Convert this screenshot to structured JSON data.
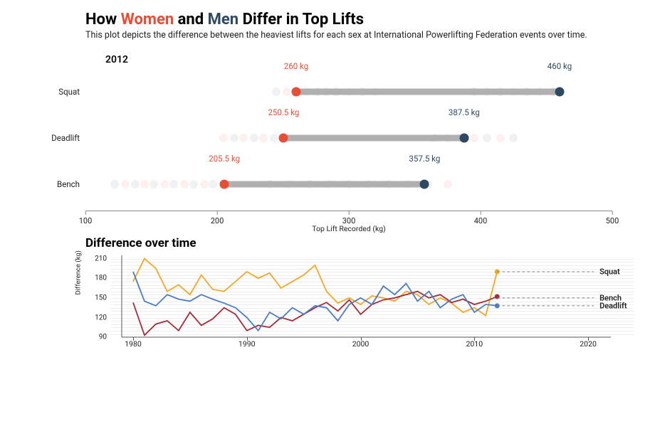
{
  "title_prefix": "How ",
  "title_women": "Women",
  "title_and": " and ",
  "title_men": "Men",
  "title_suffix": " Differ in Top Lifts",
  "subtitle": "This plot depicts the difference between the heaviest lifts for each sex at International Powerlifting Federation events over time.",
  "year": "2012",
  "colors": {
    "women": "#e64e36",
    "men": "#2e4a63",
    "bar": "#b0b0b0",
    "squat_line": "#f5a623",
    "bench_line": "#a52a3a",
    "deadlift_line": "#4a7bc4",
    "axis": "#888888",
    "grid": "#eeeeee"
  },
  "dumbbell": {
    "x_domain": [
      100,
      500
    ],
    "rows": [
      {
        "label": "Squat",
        "women": 260,
        "men": 460,
        "women_label": "260 kg",
        "men_label": "460 kg"
      },
      {
        "label": "Deadlift",
        "women": 250.5,
        "men": 387.5,
        "women_label": "250.5 kg",
        "men_label": "387.5 kg"
      },
      {
        "label": "Bench",
        "women": 205.5,
        "men": 357.5,
        "women_label": "205.5 kg",
        "men_label": "357.5 kg"
      }
    ],
    "ghosts": {
      "rows": [
        [
          {
            "x": 245,
            "c": "m"
          },
          {
            "x": 253,
            "c": "w"
          },
          {
            "x": 260,
            "c": "m"
          },
          {
            "x": 268,
            "c": "w"
          },
          {
            "x": 276,
            "c": "m"
          },
          {
            "x": 283,
            "c": "w"
          },
          {
            "x": 290,
            "c": "m"
          },
          {
            "x": 300,
            "c": "w"
          },
          {
            "x": 310,
            "c": "m"
          },
          {
            "x": 320,
            "c": "w"
          },
          {
            "x": 395,
            "c": "m"
          },
          {
            "x": 405,
            "c": "w"
          },
          {
            "x": 415,
            "c": "m"
          },
          {
            "x": 425,
            "c": "w"
          },
          {
            "x": 435,
            "c": "m"
          },
          {
            "x": 445,
            "c": "w"
          },
          {
            "x": 455,
            "c": "m"
          }
        ],
        [
          {
            "x": 205,
            "c": "w"
          },
          {
            "x": 213,
            "c": "m"
          },
          {
            "x": 220,
            "c": "w"
          },
          {
            "x": 228,
            "c": "m"
          },
          {
            "x": 235,
            "c": "w"
          },
          {
            "x": 243,
            "c": "m"
          },
          {
            "x": 365,
            "c": "m"
          },
          {
            "x": 375,
            "c": "w"
          },
          {
            "x": 385,
            "c": "m"
          },
          {
            "x": 395,
            "c": "w"
          },
          {
            "x": 405,
            "c": "m"
          },
          {
            "x": 415,
            "c": "w"
          },
          {
            "x": 425,
            "c": "m"
          }
        ],
        [
          {
            "x": 122,
            "c": "m"
          },
          {
            "x": 130,
            "c": "w"
          },
          {
            "x": 138,
            "c": "m"
          },
          {
            "x": 145,
            "c": "w"
          },
          {
            "x": 152,
            "c": "m"
          },
          {
            "x": 160,
            "c": "w"
          },
          {
            "x": 167,
            "c": "m"
          },
          {
            "x": 175,
            "c": "w"
          },
          {
            "x": 182,
            "c": "m"
          },
          {
            "x": 190,
            "c": "w"
          },
          {
            "x": 197,
            "c": "m"
          },
          {
            "x": 240,
            "c": "m"
          },
          {
            "x": 255,
            "c": "w"
          },
          {
            "x": 270,
            "c": "m"
          },
          {
            "x": 285,
            "c": "w"
          },
          {
            "x": 300,
            "c": "m"
          },
          {
            "x": 315,
            "c": "w"
          },
          {
            "x": 330,
            "c": "m"
          },
          {
            "x": 345,
            "c": "w"
          },
          {
            "x": 360,
            "c": "m"
          },
          {
            "x": 375,
            "c": "w"
          }
        ]
      ]
    },
    "ticks": [
      100,
      200,
      300,
      400,
      500
    ],
    "axis_label": "Top Lift Recorded (kg)"
  },
  "line": {
    "title": "Difference over time",
    "x_domain": [
      1978,
      2024
    ],
    "y_domain": [
      90,
      215
    ],
    "y_ticks": [
      90,
      120,
      150,
      180,
      210
    ],
    "x_ticks": [
      1980,
      1990,
      2000,
      2010,
      2020
    ],
    "y_label": "Difference (kg)",
    "series": [
      {
        "name": "Squat",
        "color": "#f5a623",
        "points": [
          [
            1980,
            175
          ],
          [
            1981,
            210
          ],
          [
            1982,
            195
          ],
          [
            1983,
            160
          ],
          [
            1984,
            170
          ],
          [
            1985,
            155
          ],
          [
            1986,
            185
          ],
          [
            1987,
            163
          ],
          [
            1988,
            160
          ],
          [
            1989,
            175
          ],
          [
            1990,
            190
          ],
          [
            1991,
            180
          ],
          [
            1992,
            188
          ],
          [
            1993,
            165
          ],
          [
            1994,
            175
          ],
          [
            1995,
            185
          ],
          [
            1996,
            200
          ],
          [
            1997,
            160
          ],
          [
            1998,
            142
          ],
          [
            1999,
            150
          ],
          [
            2000,
            140
          ],
          [
            2001,
            153
          ],
          [
            2002,
            150
          ],
          [
            2003,
            145
          ],
          [
            2004,
            160
          ],
          [
            2005,
            155
          ],
          [
            2006,
            140
          ],
          [
            2007,
            150
          ],
          [
            2008,
            142
          ],
          [
            2009,
            128
          ],
          [
            2010,
            135
          ],
          [
            2011,
            123
          ],
          [
            2012,
            190
          ]
        ],
        "end_label": "Squat",
        "end_y": 190
      },
      {
        "name": "Bench",
        "color": "#a52a3a",
        "points": [
          [
            1980,
            143
          ],
          [
            1981,
            93
          ],
          [
            1982,
            110
          ],
          [
            1983,
            115
          ],
          [
            1984,
            100
          ],
          [
            1985,
            128
          ],
          [
            1986,
            108
          ],
          [
            1987,
            118
          ],
          [
            1988,
            135
          ],
          [
            1989,
            125
          ],
          [
            1990,
            100
          ],
          [
            1991,
            108
          ],
          [
            1992,
            105
          ],
          [
            1993,
            120
          ],
          [
            1994,
            115
          ],
          [
            1995,
            125
          ],
          [
            1996,
            135
          ],
          [
            1997,
            143
          ],
          [
            1998,
            130
          ],
          [
            1999,
            147
          ],
          [
            2000,
            125
          ],
          [
            2001,
            140
          ],
          [
            2002,
            147
          ],
          [
            2003,
            150
          ],
          [
            2004,
            155
          ],
          [
            2005,
            160
          ],
          [
            2006,
            150
          ],
          [
            2007,
            155
          ],
          [
            2008,
            143
          ],
          [
            2009,
            148
          ],
          [
            2010,
            140
          ],
          [
            2011,
            145
          ],
          [
            2012,
            152
          ]
        ],
        "end_label": "Bench",
        "end_y": 150
      },
      {
        "name": "Deadlift",
        "color": "#4a7bc4",
        "points": [
          [
            1980,
            190
          ],
          [
            1981,
            145
          ],
          [
            1982,
            138
          ],
          [
            1983,
            155
          ],
          [
            1984,
            148
          ],
          [
            1985,
            145
          ],
          [
            1986,
            155
          ],
          [
            1987,
            148
          ],
          [
            1988,
            142
          ],
          [
            1989,
            135
          ],
          [
            1990,
            120
          ],
          [
            1991,
            100
          ],
          [
            1992,
            128
          ],
          [
            1993,
            118
          ],
          [
            1994,
            135
          ],
          [
            1995,
            125
          ],
          [
            1996,
            138
          ],
          [
            1997,
            135
          ],
          [
            1998,
            115
          ],
          [
            1999,
            140
          ],
          [
            2000,
            150
          ],
          [
            2001,
            140
          ],
          [
            2002,
            168
          ],
          [
            2003,
            155
          ],
          [
            2004,
            172
          ],
          [
            2005,
            145
          ],
          [
            2006,
            160
          ],
          [
            2007,
            135
          ],
          [
            2008,
            148
          ],
          [
            2009,
            155
          ],
          [
            2010,
            128
          ],
          [
            2011,
            140
          ],
          [
            2012,
            138
          ]
        ],
        "end_label": "Deadlift",
        "end_y": 138
      }
    ]
  }
}
